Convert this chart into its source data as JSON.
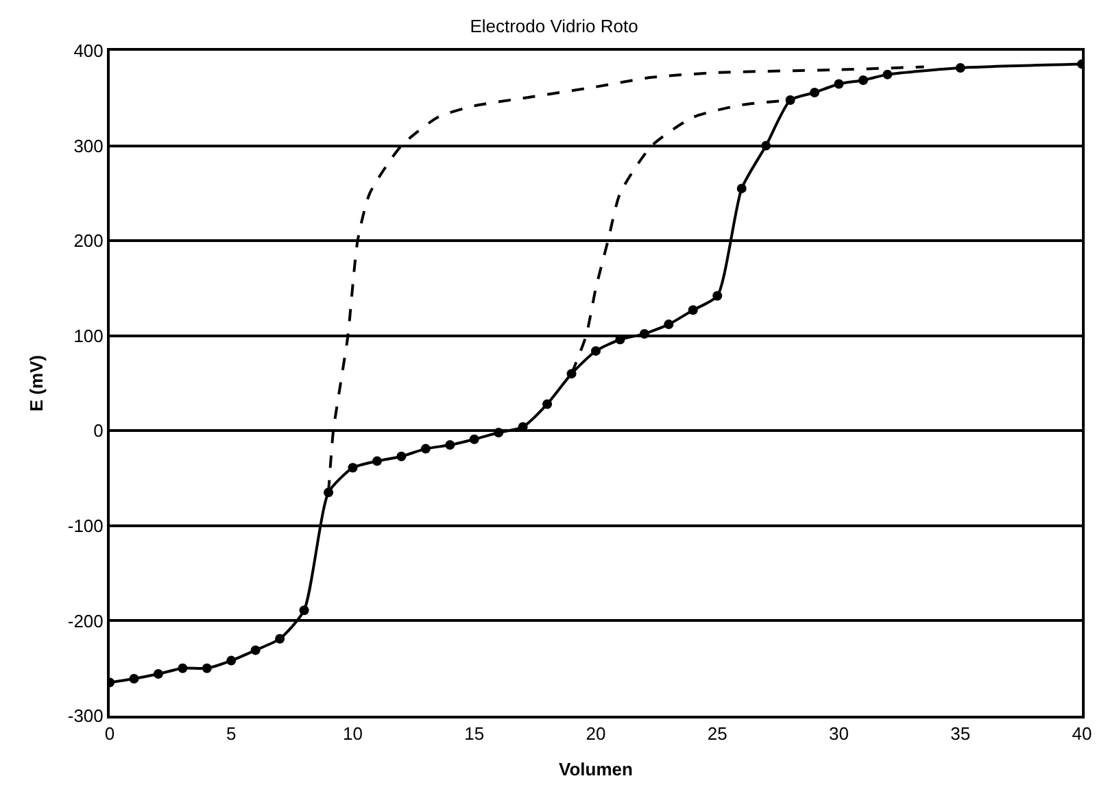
{
  "chart_data": {
    "type": "line",
    "title": "Electrodo Vidrio Roto",
    "xlabel": "Volumen",
    "ylabel": "E (mV)",
    "xlim": [
      0,
      40
    ],
    "xticks": [
      0,
      5,
      10,
      15,
      20,
      25,
      30,
      35,
      40
    ],
    "ylim": [
      -300,
      400
    ],
    "yticks": [
      -300,
      -200,
      -100,
      0,
      100,
      200,
      300,
      400
    ],
    "grid": "y",
    "legend": false,
    "series": [
      {
        "color": "#000000",
        "marker": "circle",
        "line_style": "solid",
        "x": [
          0,
          1,
          2,
          3,
          4,
          5,
          6,
          7,
          8,
          9,
          10,
          11,
          12,
          13,
          14,
          15,
          16,
          17,
          18,
          19,
          20,
          21,
          22,
          23,
          24,
          25,
          26,
          27,
          28,
          29,
          30,
          31,
          32,
          35,
          40
        ],
        "values": [
          -265,
          -261,
          -256,
          -250,
          -250,
          -242,
          -231,
          -219,
          -189,
          -65,
          -39,
          -32,
          -27,
          -19,
          -15,
          -9,
          -2,
          4,
          28,
          60,
          84,
          96,
          102,
          112,
          127,
          142,
          255,
          300,
          348,
          356,
          365,
          369,
          375,
          382,
          386
        ]
      },
      {
        "color": "#000000",
        "marker": "none",
        "line_style": "dashed",
        "x": [
          9,
          9.2,
          9.5,
          9.8,
          10.2,
          10.7,
          12,
          13.5,
          15,
          17,
          20,
          22.3,
          25,
          30,
          33.5
        ],
        "values": [
          -65,
          0,
          50,
          100,
          200,
          250,
          300,
          330,
          342,
          350,
          362,
          372,
          377,
          380,
          383
        ]
      },
      {
        "color": "#000000",
        "marker": "none",
        "line_style": "dashed",
        "x": [
          19,
          19.6,
          20,
          20.5,
          21,
          22.3,
          24,
          26,
          28
        ],
        "values": [
          60,
          100,
          150,
          200,
          250,
          300,
          330,
          343,
          348
        ]
      }
    ]
  }
}
